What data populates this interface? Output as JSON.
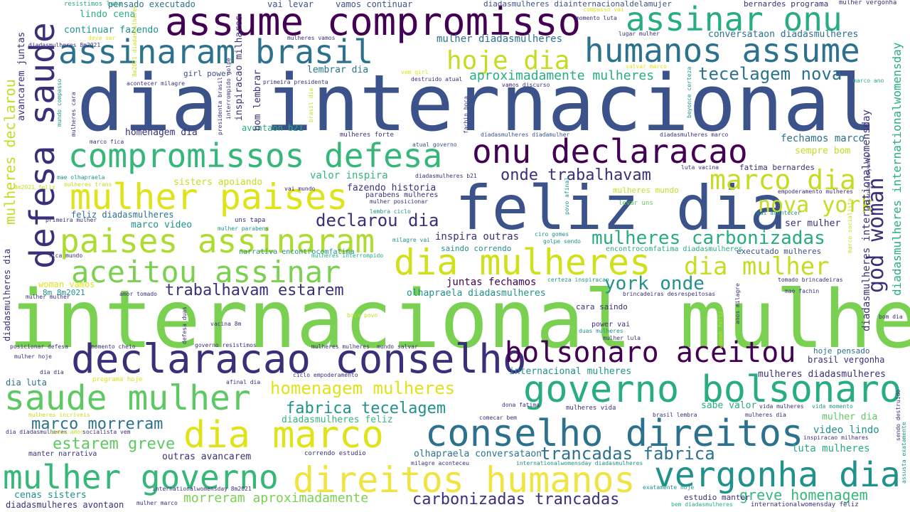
{
  "palette": {
    "dark_purple": "#440154",
    "indigo": "#3b2f7a",
    "blue": "#3b528b",
    "steel_blue": "#2c728e",
    "teal": "#21918c",
    "green_teal": "#27ad81",
    "green": "#5ec962",
    "lime": "#addc30",
    "yellow": "#e0e31a",
    "light_yellow": "#f0e442"
  },
  "words": {
    "w0": "dia internacional",
    "w1": "internacional mulher",
    "w2": "feliz dia",
    "w3": "assume compromisso",
    "w4": "assinaram brasil",
    "w5": "humanos assume",
    "w6": "assinar onu",
    "w7": "defesa saude",
    "w8": "compromissos defesa",
    "w9": "onu declaracao",
    "w10": "mulher paises",
    "w11": "paises assinaram",
    "w12": "aceitou assinar",
    "w13": "dia mulheres",
    "w14": "declaracao conselho",
    "w15": "bolsonaro aceitou",
    "w16": "saude mulher",
    "w17": "governo bolsonaro",
    "w18": "dia marco",
    "w19": "conselho direitos",
    "w20": "mulher governo",
    "w21": "direitos humanos",
    "w22": "vergonha dia",
    "w23": "marco dia",
    "w24": "dia mulher",
    "w25": "mulheres carbonizadas",
    "w26": "hoje dia",
    "w27": "nova york",
    "w28": "york onde",
    "w29": "god woman",
    "w30": "tecelagem nova",
    "w31": "aproximadamente mulheres",
    "w32": "trabalhavam estarem",
    "w33": "declarou dia",
    "w34": "onde trabalhavam",
    "w35": "homenagem mulheres",
    "w36": "fabrica tecelagem",
    "w37": "marco morreram",
    "w38": "estarem greve",
    "w39": "trancadas fabrica",
    "w40": "carbonizadas trancadas",
    "w41": "morreram aproximadamente",
    "w42": "greve homenagem",
    "w43": "mulheres declarou",
    "w44": "diadasmulheres internationalwomensday",
    "w45": "lindo cena",
    "w46": "continuar fazendo",
    "w47": "pensado executado",
    "w48": "vai levar",
    "w49": "vamos continuar",
    "w50": "resistimos luta",
    "w51": "diadasmulheres diainternacionaldelamujer",
    "w52": "bernardes programa",
    "w53": "mulher vergonha",
    "w54": "conversataon diadasmulheres",
    "w55": "mulher diadasmulheres",
    "w56": "lembrar dia",
    "w57": "girl power",
    "w58": "bom lembrar",
    "w59": "homenagem dia",
    "w60": "avontaon b21",
    "w61": "fechamos marco",
    "w62": "sempre bom",
    "w63": "fatima bernardes",
    "w64": "valor inspira",
    "w65": "sisters apoiando",
    "w66": "fazendo historia",
    "w67": "feliz diadasmulheres",
    "w68": "marco video",
    "w69": "inspira outras",
    "w70": "saindo correndo",
    "w71": "ser mulher",
    "w72": "executado mulheres",
    "w73": "juntas fechamos",
    "w74": "olhapraela diadasmulheres",
    "w75": "cara saindo",
    "w76": "power vai",
    "w77": "hoje pensado",
    "w78": "brasil vergonha",
    "w79": "internacional mulheres",
    "w80": "mulheres diadasmulheres",
    "w81": "sabe valor",
    "w82": "mulher dia",
    "w83": "video lindo",
    "w84": "luta mulheres",
    "w85": "dia luta",
    "w86": "diadasmulheres feliz",
    "w87": "olhapraela conversataon",
    "w88": "outras avancarem",
    "w89": "manter narrativa",
    "w90": "cenas sisters",
    "w91": "diadasmulheres avontaon",
    "w92": "correndo estudio",
    "w93": "estudio manter",
    "w94": "internationalwomensday feliz",
    "w95": "mulheres forte",
    "w96": "atual governo",
    "w97": "diadasmulheres diadamulher",
    "w98": "diadasmulheres marco",
    "w99": "mulheres mundo",
    "w100": "empoderamento mulheres",
    "w101": "parabens mulheres",
    "w102": "mulher posicionar",
    "w103": "lembra ciclo",
    "w104": "diadasmulheres b21",
    "w105": "levar uns",
    "w106": "vai acontecer",
    "w107": "primeira mulher",
    "w108": "uns tapa",
    "w109": "mulher parabens",
    "w110": "milagre vai",
    "w111": "ciro gomes",
    "w112": "golpe sendo",
    "w113": "encontrocomfatima diadasmulheres",
    "w114": "narrativa encontrocomfatima",
    "w115": "mulheres interrompido",
    "w116": "fica mundo",
    "w117": "tomado brincadeiras",
    "w118": "woman vamos",
    "w119": "8m 8m2021",
    "w120": "amor tomado",
    "w121": "certeza inspiracao",
    "w122": "brincadeiras desrespeitosas",
    "w123": "mae fachin",
    "w124": "boca povo",
    "w125": "governo resistimos",
    "w126": "momento cheio",
    "w127": "posicionar defesa",
    "w128": "mulheres incriveis",
    "w129": "dia diadasmulheres",
    "w130": "cheio amor",
    "w131": "socialista vem",
    "w132": "mulher hoje",
    "w133": "dia dia",
    "w134": "programa hoje",
    "w135": "afinal dia",
    "w136": "ciclo empoderamento",
    "w137": "mulheres mulheres",
    "w138": "mundo salvar",
    "w139": "vacina 8m",
    "w140": "defesa duas",
    "w141": "mulher mulher",
    "w142": "mulher lula",
    "w143": "duas mulheres",
    "w144": "woman feliz",
    "w145": "anos milagre",
    "w146": "bom dia",
    "w147": "dona fatima",
    "w148": "comecar bem",
    "w149": "mulheres vida",
    "w150": "vida mulheres",
    "w151": "vida momento",
    "w152": "brasil lembra",
    "w153": "mulheres dia",
    "w154": "inspiracao milhares",
    "w155": "milagre aconteceu",
    "w156": "internationalwomensday diadasmulheres",
    "w157": "exatamente hoje",
    "w158": "internationalwomensday 8m2021",
    "w159": "bem diadasmulheres",
    "w160": "mulher marco",
    "w161": "mulheres cara",
    "w162": "mundo compasso",
    "w163": "8m2021 diadasmulheres",
    "w164": "acontecer milagre",
    "w165": "primeira presidenta",
    "w166": "presidenta brasil",
    "w167": "interrompido golpe",
    "w168": "destruido atual",
    "w169": "vem girl",
    "w170": "vamos discurso",
    "w171": "salvar marco",
    "w172": "lugar mulher",
    "w173": "momento luta",
    "w174": "compasso vai",
    "w175": "deve ser",
    "w176": "mulheres vamos",
    "w177": "beyonce certeza",
    "w178": "marco ano",
    "w179": "avancarem juntas",
    "w180": "fachin boca",
    "w181": "brasil dia",
    "w182": "marco fica",
    "w183": "mae olhapraela",
    "w184": "mulheres trans",
    "w185": "vai mundo",
    "w186": "povo afinal",
    "w187": "luta vacina",
    "w188": "discurso beyonce",
    "w189": "marco socialista",
    "w190": "diadasmulheres internationalwomensday",
    "w191": "8m2021 feliz",
    "w192": "sendo destruido",
    "w193": "assusta exatamente",
    "w194": "diadasmulheres dia",
    "w195": "diadasmulheres 8m2021"
  }
}
